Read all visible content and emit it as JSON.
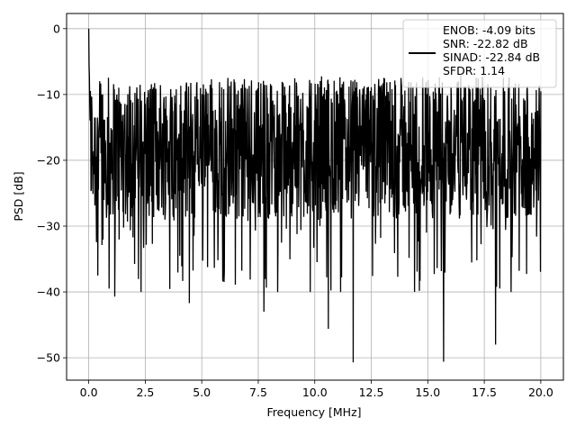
{
  "chart_data": {
    "type": "line",
    "title": "",
    "xlabel": "Frequency [MHz]",
    "ylabel": "PSD [dB]",
    "xlim": [
      -0.98,
      21.0
    ],
    "ylim": [
      -53.4,
      2.3
    ],
    "x_ticks": [
      0.0,
      2.5,
      5.0,
      7.5,
      10.0,
      12.5,
      15.0,
      17.5,
      20.0
    ],
    "x_tick_labels": [
      "0.0",
      "2.5",
      "5.0",
      "7.5",
      "10.0",
      "12.5",
      "15.0",
      "17.5",
      "20.0"
    ],
    "y_ticks": [
      0,
      -10,
      -20,
      -30,
      -40,
      -50
    ],
    "y_tick_labels": [
      "0",
      "−10",
      "−20",
      "−30",
      "−40",
      "−50"
    ],
    "grid": true,
    "legend_position": "top-right",
    "line_color": "#000000",
    "series": [
      {
        "name": "",
        "x_range": [
          0.0,
          20.0
        ],
        "spectrum_profile": {
          "dc_peak_db": 0.0,
          "noise_mean_db": -19.0,
          "upper_envelope_db": -7.0,
          "lower_envelope_db": -40.0
        },
        "notable_dips": [
          {
            "x": 0.4,
            "y": -37.5
          },
          {
            "x": 0.9,
            "y": -39.5
          },
          {
            "x": 1.15,
            "y": -40.7
          },
          {
            "x": 4.45,
            "y": -41.7
          },
          {
            "x": 7.75,
            "y": -43.0
          },
          {
            "x": 10.6,
            "y": -45.6
          },
          {
            "x": 11.7,
            "y": -50.7
          },
          {
            "x": 15.7,
            "y": -50.6
          },
          {
            "x": 18.0,
            "y": -48.0
          }
        ]
      }
    ],
    "legend_lines": [
      "ENOB: -4.09 bits",
      "SNR: -22.82 dB",
      "SINAD: -22.84 dB",
      "SFDR: 1.14"
    ]
  }
}
